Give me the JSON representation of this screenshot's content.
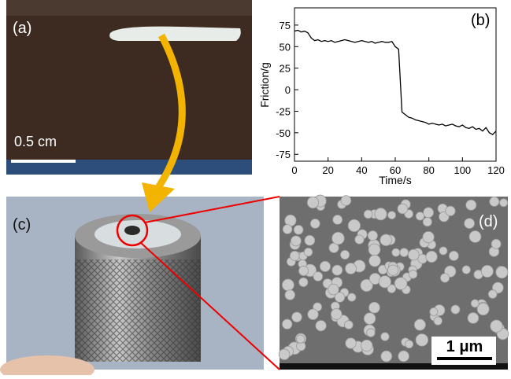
{
  "panels": {
    "a": {
      "label": "(a)",
      "scale": "0.5 cm"
    },
    "c": {
      "label": "(c)"
    },
    "d": {
      "label": "(d)",
      "scale": "1 μm"
    }
  },
  "chart_data": {
    "type": "line",
    "label": "(b)",
    "x_label": "Time/s",
    "y_label": "Friction/g",
    "x": [
      0,
      2,
      4,
      6,
      8,
      10,
      12,
      14,
      16,
      18,
      20,
      22,
      24,
      26,
      28,
      30,
      32,
      34,
      36,
      38,
      40,
      42,
      44,
      46,
      48,
      50,
      52,
      54,
      56,
      58,
      60,
      62,
      64,
      66,
      68,
      70,
      72,
      74,
      76,
      78,
      80,
      82,
      84,
      86,
      88,
      90,
      92,
      94,
      96,
      98,
      100,
      102,
      104,
      106,
      108,
      110,
      112,
      114,
      116,
      118,
      120
    ],
    "series": [
      {
        "color": "#000000",
        "values": [
          68,
          69,
          67,
          68,
          66,
          60,
          57,
          58,
          56,
          57,
          56,
          57,
          55,
          56,
          57,
          58,
          57,
          56,
          55,
          56,
          57,
          56,
          55,
          56,
          54,
          55,
          56,
          55,
          55,
          56,
          50,
          47,
          -26,
          -29,
          -32,
          -33,
          -35,
          -36,
          -37,
          -38,
          -40,
          -39,
          -40,
          -41,
          -40,
          -42,
          -41,
          -40,
          -42,
          -43,
          -41,
          -44,
          -45,
          -43,
          -46,
          -45,
          -48,
          -44,
          -50,
          -52,
          -48
        ]
      }
    ],
    "xlim": [
      0,
      120
    ],
    "ylim": [
      -83,
      95
    ],
    "xticks": [
      0,
      20,
      40,
      60,
      80,
      100,
      120
    ],
    "yticks": [
      -75,
      -50,
      -25,
      0,
      25,
      50,
      75
    ]
  }
}
